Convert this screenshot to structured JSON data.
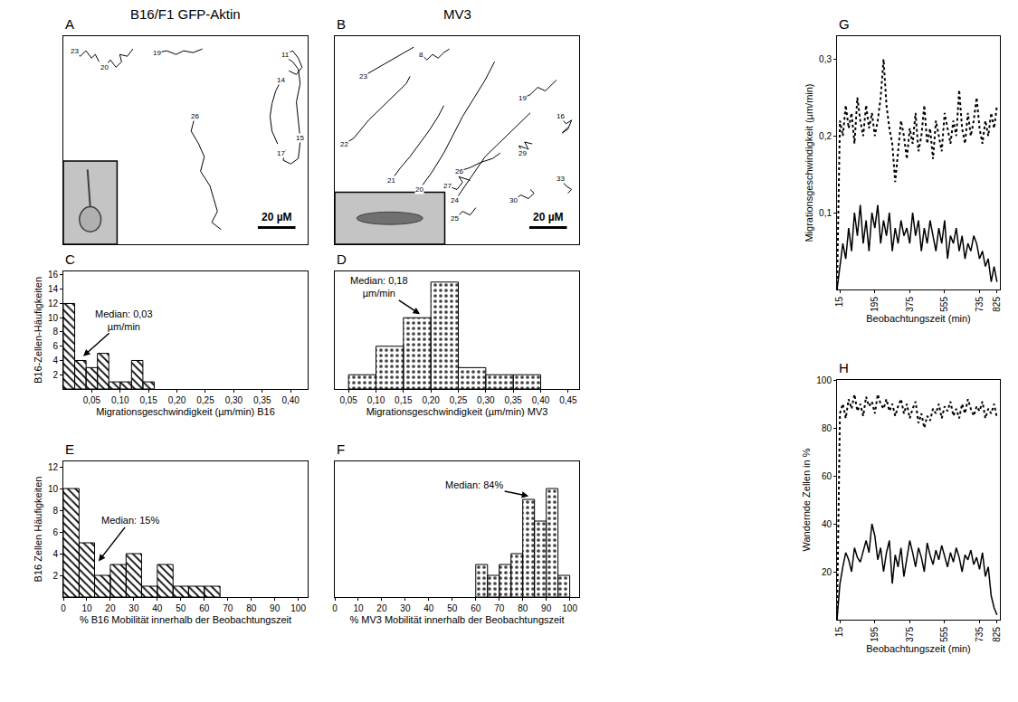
{
  "headers": [
    "B16/F1 GFP-Aktin",
    "MV3"
  ],
  "chart_data": [
    {
      "panel": "A",
      "type": "trajectory",
      "color": "#000000",
      "tick_labels": false,
      "xlim": [
        0,
        130
      ],
      "ylim": [
        0,
        114
      ],
      "scale_bar": {
        "length": 20,
        "label": "20 µM"
      },
      "series": [
        {
          "label": "23",
          "x": [
            6,
            9,
            12,
            15,
            17,
            19
          ],
          "y": [
            106,
            103,
            106,
            102,
            104,
            100
          ]
        },
        {
          "label": "20",
          "x": [
            22,
            25,
            28,
            31,
            30,
            34,
            37
          ],
          "y": [
            97,
            101,
            97,
            100,
            104,
            103,
            107
          ]
        },
        {
          "label": "19",
          "x": [
            50,
            55,
            60,
            64,
            69,
            74
          ],
          "y": [
            105,
            106,
            104,
            106,
            105,
            107
          ]
        },
        {
          "label": "11",
          "x": [
            118,
            122,
            125,
            127,
            124,
            120
          ],
          "y": [
            104,
            106,
            102,
            97,
            93,
            95
          ]
        },
        {
          "label": "14",
          "x": [
            116,
            113,
            111,
            110,
            111,
            114
          ],
          "y": [
            90,
            84,
            77,
            70,
            62,
            55
          ]
        },
        {
          "label": "17",
          "x": [
            116,
            118,
            117,
            121,
            125,
            126
          ],
          "y": [
            50,
            52,
            46,
            44,
            47,
            56
          ]
        },
        {
          "label": "15",
          "x": [
            126,
            125,
            124,
            126,
            125,
            122,
            119
          ],
          "y": [
            58,
            68,
            78,
            88,
            96,
            100,
            102
          ]
        },
        {
          "label": "26",
          "x": [
            70,
            68,
            72,
            75,
            73,
            78,
            80,
            82,
            79,
            84
          ],
          "y": [
            70,
            62,
            55,
            48,
            40,
            32,
            25,
            18,
            12,
            8
          ]
        }
      ]
    },
    {
      "panel": "B",
      "type": "trajectory",
      "color": "#000000",
      "tick_labels": false,
      "xlim": [
        0,
        130
      ],
      "ylim": [
        0,
        114
      ],
      "scale_bar": {
        "length": 20,
        "label": "20 µM"
      },
      "series": [
        {
          "label": "23",
          "x": [
            15,
            20,
            25,
            28,
            33,
            38,
            42
          ],
          "y": [
            92,
            95,
            98,
            100,
            103,
            106,
            108
          ]
        },
        {
          "label": "8",
          "x": [
            46,
            49,
            52,
            55,
            58,
            61
          ],
          "y": [
            104,
            101,
            104,
            102,
            105,
            107
          ]
        },
        {
          "label": "22",
          "x": [
            5,
            10,
            14,
            18,
            22,
            26,
            30,
            34,
            38,
            40
          ],
          "y": [
            55,
            58,
            63,
            68,
            72,
            76,
            80,
            84,
            88,
            92
          ]
        },
        {
          "label": "21",
          "x": [
            30,
            35,
            40,
            45,
            50,
            55,
            58
          ],
          "y": [
            35,
            42,
            48,
            55,
            62,
            70,
            76
          ]
        },
        {
          "label": "20",
          "x": [
            45,
            52,
            58,
            63,
            68,
            74,
            80,
            85
          ],
          "y": [
            30,
            40,
            50,
            60,
            70,
            80,
            90,
            100
          ]
        },
        {
          "label": "24",
          "x": [
            64,
            68,
            72,
            76,
            80,
            86,
            92,
            98,
            104
          ],
          "y": [
            24,
            30,
            36,
            42,
            48,
            54,
            60,
            66,
            72
          ]
        },
        {
          "label": "19",
          "x": [
            100,
            104,
            108,
            112,
            116,
            118
          ],
          "y": [
            80,
            82,
            86,
            84,
            88,
            90
          ]
        },
        {
          "label": "16",
          "x": [
            120,
            123,
            126,
            124,
            121,
            124
          ],
          "y": [
            70,
            66,
            68,
            63,
            61,
            64
          ]
        },
        {
          "label": "29",
          "x": [
            100,
            98,
            103,
            101,
            105
          ],
          "y": [
            50,
            54,
            52,
            56,
            55
          ]
        },
        {
          "label": "26",
          "x": [
            66,
            72,
            78,
            84,
            88
          ],
          "y": [
            40,
            42,
            45,
            47,
            50
          ]
        },
        {
          "label": "27",
          "x": [
            60,
            65,
            68,
            66,
            72
          ],
          "y": [
            32,
            30,
            34,
            37,
            35
          ]
        },
        {
          "label": "25",
          "x": [
            64,
            68,
            72,
            75
          ],
          "y": [
            14,
            18,
            16,
            20
          ]
        },
        {
          "label": "30",
          "x": [
            95,
            99,
            103,
            106,
            104
          ],
          "y": [
            24,
            27,
            25,
            28,
            30
          ]
        },
        {
          "label": "33",
          "x": [
            120,
            123,
            126,
            124
          ],
          "y": [
            36,
            32,
            30,
            28
          ]
        }
      ]
    },
    {
      "panel": "C",
      "type": "histogram",
      "color": "#ffffff",
      "marker": "hatch",
      "bins": [
        0,
        0.02,
        0.04,
        0.06,
        0.08,
        0.1,
        0.12,
        0.14,
        0.16
      ],
      "counts": [
        12,
        4,
        3,
        5,
        1,
        1,
        4,
        1
      ],
      "xlim": [
        0,
        0.43
      ],
      "xticks": [
        {
          "value": 0.05,
          "label": "0,05"
        },
        {
          "value": 0.1,
          "label": "0,10"
        },
        {
          "value": 0.15,
          "label": "0,15"
        },
        {
          "value": 0.2,
          "label": "0,20"
        },
        {
          "value": 0.25,
          "label": "0,25"
        },
        {
          "value": 0.3,
          "label": "0,30"
        },
        {
          "value": 0.35,
          "label": "0,35"
        },
        {
          "value": 0.4,
          "label": "0,40"
        }
      ],
      "ylim": [
        0,
        16.5
      ],
      "yticks": [
        2,
        4,
        6,
        8,
        10,
        12,
        14,
        16
      ],
      "xlabel": "Migrationsgeschwindigkeit (µm/min) B16",
      "ylabel": "B16-Zellen-Häufigkeiten",
      "annotations": [
        {
          "text": "Median: 0,03\nµm/min",
          "x": 0.035,
          "y": 4.6
        }
      ]
    },
    {
      "panel": "D",
      "type": "histogram",
      "color": "#e0e0e0",
      "marker": "dots",
      "tick_labels": "x",
      "bins": [
        0.05,
        0.1,
        0.15,
        0.2,
        0.25,
        0.3,
        0.35,
        0.4
      ],
      "counts": [
        2,
        6,
        10,
        15,
        3,
        2,
        2
      ],
      "xlim": [
        0.025,
        0.47
      ],
      "xticks": [
        {
          "value": 0.05,
          "label": "0,05"
        },
        {
          "value": 0.1,
          "label": "0,10"
        },
        {
          "value": 0.15,
          "label": "0,15"
        },
        {
          "value": 0.2,
          "label": "0,20"
        },
        {
          "value": 0.25,
          "label": "0,25"
        },
        {
          "value": 0.3,
          "label": "0,30"
        },
        {
          "value": 0.35,
          "label": "0,35"
        },
        {
          "value": 0.4,
          "label": "0,40"
        },
        {
          "value": 0.45,
          "label": "0,45"
        }
      ],
      "ylim": [
        0,
        16.5
      ],
      "xlabel": "Migrationsgeschwindigkeit (µm/min) MV3",
      "annotations": [
        {
          "text": "Median: 0,18\nµm/min",
          "x": 0.18,
          "y": 10.5
        }
      ]
    },
    {
      "panel": "E",
      "type": "histogram",
      "color": "#ffffff",
      "marker": "hatch",
      "bins": [
        0,
        6.7,
        13.3,
        20,
        26.7,
        33.3,
        40,
        46.7,
        53.3,
        60,
        66.7
      ],
      "counts": [
        10,
        5,
        2,
        3,
        4,
        1,
        3,
        1,
        1,
        1
      ],
      "xlim": [
        0,
        104
      ],
      "xticks": [
        0,
        10,
        20,
        30,
        40,
        50,
        60,
        70,
        80,
        90,
        100
      ],
      "ylim": [
        0,
        12.5
      ],
      "yticks": [
        2,
        4,
        6,
        8,
        10,
        12
      ],
      "xlabel": "% B16 Mobilität innerhalb der Beobachtungszeit",
      "ylabel": "B16 Zellen Häufigkeiten",
      "annotations": [
        {
          "text": "Median: 15%",
          "x": 15,
          "y": 3.3
        }
      ]
    },
    {
      "panel": "F",
      "type": "histogram",
      "color": "#e0e0e0",
      "marker": "dots",
      "tick_labels": "x",
      "bins": [
        60,
        65,
        70,
        75,
        80,
        85,
        90,
        95,
        100
      ],
      "counts": [
        3,
        2,
        3,
        4,
        9,
        7,
        10,
        2
      ],
      "xlim": [
        0,
        104
      ],
      "xticks": [
        0,
        10,
        20,
        30,
        40,
        50,
        60,
        70,
        80,
        90,
        100
      ],
      "ylim": [
        0,
        12.5
      ],
      "xlabel": "% MV3 Mobilität innerhalb der Beobachtungszeit",
      "annotations": [
        {
          "text": "Median: 84%",
          "x": 82.5,
          "y": 9.3
        }
      ]
    },
    {
      "panel": "G",
      "type": "line",
      "x": [
        0,
        15,
        30,
        45,
        60,
        75,
        90,
        105,
        120,
        135,
        150,
        165,
        180,
        195,
        210,
        225,
        240,
        255,
        270,
        285,
        300,
        315,
        330,
        345,
        360,
        375,
        390,
        405,
        420,
        435,
        450,
        465,
        480,
        495,
        510,
        525,
        540,
        555,
        570,
        585,
        600,
        615,
        630,
        645,
        660,
        675,
        690,
        705,
        720,
        735,
        750,
        765,
        780,
        795,
        810,
        825
      ],
      "series": [
        {
          "color": "#000000",
          "line_style": "dot",
          "values": [
            0,
            0.22,
            0.2,
            0.24,
            0.21,
            0.23,
            0.19,
            0.25,
            0.22,
            0.2,
            0.24,
            0.21,
            0.23,
            0.2,
            0.22,
            0.25,
            0.3,
            0.24,
            0.21,
            0.19,
            0.14,
            0.18,
            0.22,
            0.2,
            0.17,
            0.21,
            0.19,
            0.23,
            0.18,
            0.2,
            0.24,
            0.19,
            0.21,
            0.17,
            0.22,
            0.2,
            0.18,
            0.23,
            0.21,
            0.19,
            0.22,
            0.2,
            0.26,
            0.21,
            0.19,
            0.23,
            0.2,
            0.22,
            0.25,
            0.21,
            0.19,
            0.22,
            0.2,
            0.23,
            0.21,
            0.24
          ]
        },
        {
          "color": "#000000",
          "line_style": "solid",
          "values": [
            0,
            0.03,
            0.06,
            0.04,
            0.08,
            0.05,
            0.1,
            0.07,
            0.11,
            0.06,
            0.09,
            0.05,
            0.1,
            0.08,
            0.11,
            0.06,
            0.09,
            0.07,
            0.1,
            0.05,
            0.08,
            0.06,
            0.09,
            0.07,
            0.08,
            0.06,
            0.1,
            0.07,
            0.09,
            0.05,
            0.08,
            0.06,
            0.09,
            0.07,
            0.05,
            0.08,
            0.06,
            0.09,
            0.04,
            0.07,
            0.06,
            0.08,
            0.05,
            0.07,
            0.04,
            0.06,
            0.05,
            0.07,
            0.06,
            0.04,
            0.05,
            0.03,
            0.04,
            0.01,
            0.03,
            0.01
          ]
        }
      ],
      "xlim": [
        0,
        840
      ],
      "xticks": [
        15,
        195,
        375,
        555,
        735,
        825
      ],
      "ylim": [
        0,
        0.33
      ],
      "yticks": [
        {
          "value": 0.1,
          "label": "0,1"
        },
        {
          "value": 0.2,
          "label": "0,2"
        },
        {
          "value": 0.3,
          "label": "0,3"
        }
      ],
      "xlabel": "Beobachtungszeit (min)",
      "ylabel": "Migrationsgeschwindigkeit (µm/min)"
    },
    {
      "panel": "H",
      "type": "line",
      "x": [
        0,
        15,
        30,
        45,
        60,
        75,
        90,
        105,
        120,
        135,
        150,
        165,
        180,
        195,
        210,
        225,
        240,
        255,
        270,
        285,
        300,
        315,
        330,
        345,
        360,
        375,
        390,
        405,
        420,
        435,
        450,
        465,
        480,
        495,
        510,
        525,
        540,
        555,
        570,
        585,
        600,
        615,
        630,
        645,
        660,
        675,
        690,
        705,
        720,
        735,
        750,
        765,
        780,
        795,
        810,
        825
      ],
      "series": [
        {
          "color": "#000000",
          "line_style": "dot",
          "values": [
            0,
            86,
            90,
            84,
            92,
            88,
            94,
            87,
            90,
            85,
            93,
            89,
            91,
            86,
            94,
            90,
            88,
            92,
            87,
            90,
            85,
            89,
            92,
            86,
            90,
            84,
            88,
            91,
            82,
            86,
            80,
            85,
            83,
            88,
            86,
            90,
            84,
            89,
            87,
            91,
            85,
            88,
            84,
            90,
            86,
            92,
            88,
            85,
            89,
            87,
            91,
            84,
            88,
            86,
            90,
            84
          ]
        },
        {
          "color": "#000000",
          "line_style": "solid",
          "values": [
            0,
            15,
            22,
            28,
            25,
            20,
            30,
            26,
            24,
            29,
            33,
            28,
            40,
            35,
            25,
            30,
            20,
            28,
            33,
            15,
            27,
            22,
            30,
            18,
            25,
            33,
            28,
            22,
            30,
            26,
            20,
            32,
            27,
            23,
            29,
            25,
            31,
            26,
            22,
            28,
            24,
            30,
            26,
            20,
            27,
            25,
            29,
            23,
            26,
            21,
            28,
            18,
            22,
            10,
            5,
            2
          ]
        }
      ],
      "xlim": [
        0,
        840
      ],
      "xticks": [
        15,
        195,
        375,
        555,
        735,
        825
      ],
      "ylim": [
        0,
        100
      ],
      "yticks": [
        20,
        40,
        60,
        80,
        100
      ],
      "xlabel": "Beobachtungszeit (min)",
      "ylabel": "Wandernde Zellen in %"
    }
  ]
}
